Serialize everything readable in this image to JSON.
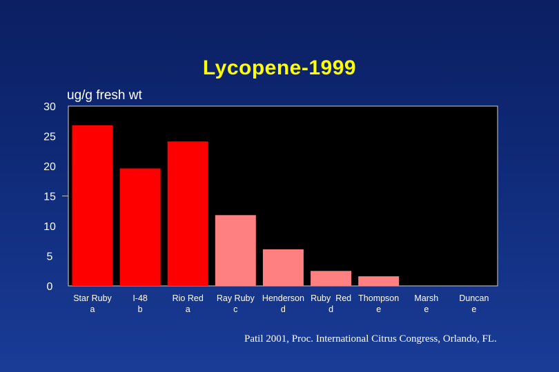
{
  "slide": {
    "title": "Lycopene-1999",
    "citation": "Patil 2001, Proc. International Citrus Congress, Orlando, FL."
  },
  "chart_data": {
    "type": "bar",
    "title": "Lycopene-1999",
    "ylabel": "ug/g fresh wt",
    "xlabel": "",
    "ylim": [
      0,
      30
    ],
    "yticks": [
      0,
      5,
      10,
      15,
      20,
      25,
      30
    ],
    "grid": false,
    "categories": [
      "Star Ruby",
      "I-48",
      "Rio Red",
      "Ray Ruby",
      "Henderson",
      "Ruby  Red",
      "Thompson",
      "Marsh",
      "Duncan"
    ],
    "significance_letters": [
      "a",
      "b",
      "a",
      "c",
      "d",
      "d",
      "e",
      "e",
      "e"
    ],
    "values": [
      26.8,
      19.6,
      24.1,
      11.8,
      6.1,
      2.5,
      1.6,
      0,
      0
    ],
    "bar_colors": [
      "#ff0000",
      "#ff0000",
      "#ff0000",
      "#ff8080",
      "#ff8080",
      "#ff8080",
      "#ff8080",
      "#ff8080",
      "#ff8080"
    ],
    "plot_background": "#000000",
    "text_color": "#ffffff"
  }
}
